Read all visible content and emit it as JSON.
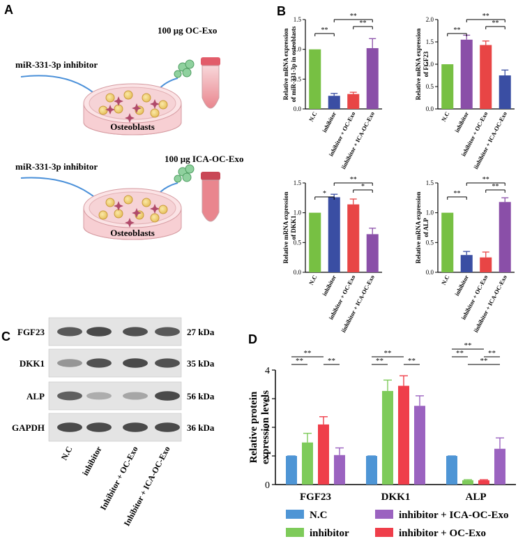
{
  "panel_labels": {
    "a": "A",
    "b": "B",
    "c": "C",
    "d": "D"
  },
  "panel_a": {
    "top": {
      "inhibitor_label": "miR-331-3p inhibitor",
      "exo_label": "100 μg OC-Exo",
      "dish_label": "Osteoblasts"
    },
    "bottom": {
      "inhibitor_label": "miR-331-3p inhibitor",
      "exo_label": "100 μg ICA-OC-Exo",
      "dish_label": "Osteoblasts"
    }
  },
  "colors": {
    "green": "#77c043",
    "blue": "#3a4ea3",
    "red": "#e84545",
    "purple": "#8a4fa8",
    "d_blue": "#4e95d5",
    "d_green": "#7ecb5a",
    "d_red": "#ef3e4a",
    "d_purple": "#9b63c0"
  },
  "chart_data": [
    {
      "type": "bar",
      "panel": "B",
      "ylabel": "Relative mRNA expression of miR-331-3p in osteoblasts",
      "categories": [
        "N.C",
        "inhibitor",
        "inhibitor + OC-Exo",
        "iinhibitor + ICA-OC-Exo"
      ],
      "values": [
        1.0,
        0.22,
        0.25,
        1.02
      ],
      "errors": [
        0.0,
        0.04,
        0.03,
        0.16
      ],
      "bar_colors": [
        "#77c043",
        "#3a4ea3",
        "#e84545",
        "#8a4fa8"
      ],
      "ylim": [
        0,
        1.5
      ],
      "yticks": [
        "0.0",
        "0.5",
        "1.0",
        "1.5"
      ],
      "significance": [
        {
          "from": 0,
          "to": 1,
          "label": "**",
          "level": 0
        },
        {
          "from": 1,
          "to": 3,
          "label": "**",
          "level": 2
        },
        {
          "from": 2,
          "to": 3,
          "label": "**",
          "level": 1
        }
      ]
    },
    {
      "type": "bar",
      "panel": "B",
      "ylabel": "Relative mRNA expression of FGF23",
      "categories": [
        "N.C",
        "inhibitor",
        "inhibitor + OC-Exo",
        "iinhibitor + ICA-OC-Exo"
      ],
      "values": [
        1.0,
        1.55,
        1.43,
        0.75
      ],
      "errors": [
        0.0,
        0.1,
        0.09,
        0.12
      ],
      "bar_colors": [
        "#77c043",
        "#8a4fa8",
        "#e84545",
        "#3a4ea3"
      ],
      "ylim": [
        0,
        2.0
      ],
      "yticks": [
        "0.0",
        "0.5",
        "1.0",
        "1.5",
        "2.0"
      ],
      "significance": [
        {
          "from": 0,
          "to": 1,
          "label": "**",
          "level": 0
        },
        {
          "from": 1,
          "to": 3,
          "label": "**",
          "level": 2
        },
        {
          "from": 2,
          "to": 3,
          "label": "**",
          "level": 1
        }
      ]
    },
    {
      "type": "bar",
      "panel": "B",
      "ylabel": "Relative mRNA expression of DKK1",
      "categories": [
        "N.C",
        "inhibitor",
        "inhibitor + OC-Exo",
        "iinhibitor + ICA-OC-Exo"
      ],
      "values": [
        1.0,
        1.26,
        1.14,
        0.64
      ],
      "errors": [
        0.0,
        0.05,
        0.09,
        0.1
      ],
      "bar_colors": [
        "#77c043",
        "#3a4ea3",
        "#e84545",
        "#8a4fa8"
      ],
      "ylim": [
        0,
        1.5
      ],
      "yticks": [
        "0.0",
        "0.5",
        "1.0",
        "1.5"
      ],
      "significance": [
        {
          "from": 0,
          "to": 1,
          "label": "*",
          "level": 0
        },
        {
          "from": 1,
          "to": 3,
          "label": "**",
          "level": 2
        },
        {
          "from": 2,
          "to": 3,
          "label": "*",
          "level": 1
        }
      ]
    },
    {
      "type": "bar",
      "panel": "B",
      "ylabel": "Relative mRNA expression of ALP",
      "categories": [
        "N.C",
        "inhibitor",
        "inhibitor + OC-Exo",
        "iinhibitor + ICA-OC-Exo"
      ],
      "values": [
        1.0,
        0.29,
        0.25,
        1.18
      ],
      "errors": [
        0.0,
        0.06,
        0.09,
        0.07
      ],
      "bar_colors": [
        "#77c043",
        "#3a4ea3",
        "#e84545",
        "#8a4fa8"
      ],
      "ylim": [
        0,
        1.5
      ],
      "yticks": [
        "0.0",
        "0.5",
        "1.0",
        "1.5"
      ],
      "significance": [
        {
          "from": 0,
          "to": 1,
          "label": "**",
          "level": 0
        },
        {
          "from": 1,
          "to": 3,
          "label": "**",
          "level": 2
        },
        {
          "from": 2,
          "to": 3,
          "label": "**",
          "level": 1
        }
      ]
    },
    {
      "type": "bar",
      "panel": "D",
      "ylabel": "Relative protein expression levels",
      "categories": [
        "FGF23",
        "DKK1",
        "ALP"
      ],
      "ylim": [
        0,
        4
      ],
      "yticks": [
        "0",
        "1",
        "2",
        "3",
        "4"
      ],
      "series": [
        {
          "name": "N.C",
          "color": "#4e95d5",
          "values": [
            1.0,
            1.0,
            1.0
          ],
          "errors": [
            0.0,
            0.0,
            0.0
          ]
        },
        {
          "name": "inhibitor",
          "color": "#7ecb5a",
          "values": [
            1.47,
            3.27,
            0.15
          ],
          "errors": [
            0.32,
            0.38,
            0.02
          ]
        },
        {
          "name": "inhibitor + OC-Exo",
          "color": "#ef3e4a",
          "values": [
            2.1,
            3.45,
            0.15
          ],
          "errors": [
            0.27,
            0.35,
            0.02
          ]
        },
        {
          "name": "inhibitor + ICA-OC-Exo",
          "color": "#9b63c0",
          "values": [
            1.03,
            2.75,
            1.25
          ],
          "errors": [
            0.25,
            0.35,
            0.38
          ]
        }
      ],
      "significance": [
        {
          "group": 0,
          "from": 0,
          "to": 1,
          "label": "**",
          "level": 0
        },
        {
          "group": 0,
          "from": 0,
          "to": 2,
          "label": "**",
          "level": 1
        },
        {
          "group": 0,
          "from": 2,
          "to": 3,
          "label": "**",
          "level": 0
        },
        {
          "group": 1,
          "from": 0,
          "to": 1,
          "label": "**",
          "level": 0
        },
        {
          "group": 1,
          "from": 0,
          "to": 2,
          "label": "**",
          "level": 1
        },
        {
          "group": 1,
          "from": 2,
          "to": 3,
          "label": "**",
          "level": 0
        },
        {
          "group": 2,
          "from": 0,
          "to": 1,
          "label": "**",
          "level": 1
        },
        {
          "group": 2,
          "from": 0,
          "to": 2,
          "label": "**",
          "level": 2
        },
        {
          "group": 2,
          "from": 1,
          "to": 3,
          "label": "**",
          "level": 0
        },
        {
          "group": 2,
          "from": 2,
          "to": 3,
          "label": "**",
          "level": 1
        }
      ],
      "legend": [
        {
          "name": "N.C",
          "color": "#4e95d5"
        },
        {
          "name": "inhibitor + ICA-OC-Exo",
          "color": "#9b63c0"
        },
        {
          "name": "inhibitor",
          "color": "#7ecb5a"
        },
        {
          "name": "inhibitor + OC-Exo",
          "color": "#ef3e4a"
        }
      ]
    }
  ],
  "western_blot": {
    "rows": [
      {
        "protein": "FGF23",
        "kda": "27 kDa",
        "intensities": [
          0.75,
          0.85,
          0.8,
          0.75
        ]
      },
      {
        "protein": "DKK1",
        "kda": "35 kDa",
        "intensities": [
          0.35,
          0.8,
          0.85,
          0.8
        ]
      },
      {
        "protein": "ALP",
        "kda": "56 kDa",
        "intensities": [
          0.7,
          0.2,
          0.25,
          0.85
        ]
      },
      {
        "protein": "GAPDH",
        "kda": "36 kDa",
        "intensities": [
          0.85,
          0.85,
          0.85,
          0.85
        ]
      }
    ],
    "lanes": [
      "N.C",
      "inhibitor",
      "Inhibitor + OC-Exo",
      "Inhibitor + ICA-OC-Exo"
    ]
  }
}
